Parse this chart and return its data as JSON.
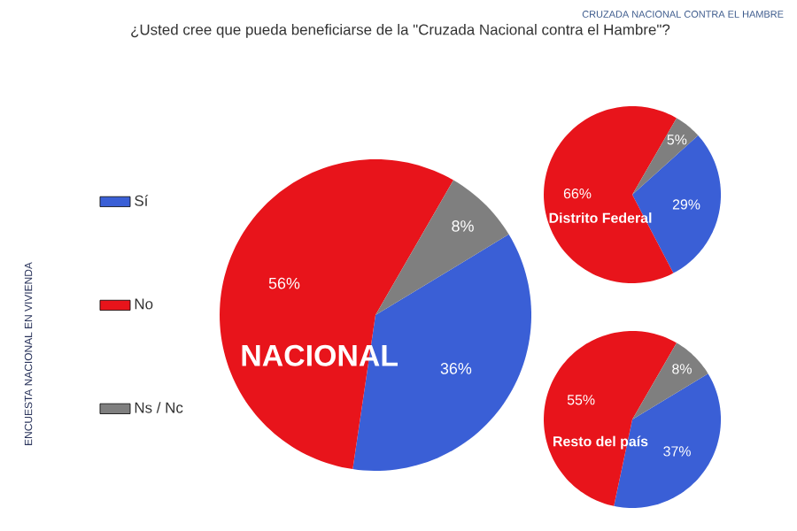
{
  "chart_data": [
    {
      "type": "other",
      "title": "¿Usted cree que pueda beneficiarse de la \"Cruzada Nacional contra el Hambre\"?",
      "annotations": [
        "CRUZADA NACIONAL CONTRA EL HAMBRE",
        "ENCUESTA NACIONAL EN VIVIENDA"
      ]
    },
    {
      "type": "pie",
      "title": "NACIONAL",
      "categories": [
        "Sí",
        "No",
        "Ns / Nc"
      ],
      "values": [
        36,
        56,
        8
      ],
      "colors": [
        "#3a5fd6",
        "#e8141b",
        "#7f7f7f"
      ],
      "value_labels": [
        "36%",
        "56%",
        "8%"
      ],
      "legend": "left"
    },
    {
      "type": "pie",
      "title": "Distrito Federal",
      "categories": [
        null,
        null,
        null
      ],
      "values": [
        29,
        66,
        5
      ],
      "colors": [
        "#3a5fd6",
        "#e8141b",
        "#7f7f7f"
      ],
      "value_labels": [
        "29%",
        "66%",
        "5%"
      ]
    },
    {
      "type": "pie",
      "title": "Resto del país",
      "categories": [
        null,
        null,
        null
      ],
      "values": [
        37,
        55,
        8
      ],
      "colors": [
        "#3a5fd6",
        "#e8141b",
        "#7f7f7f"
      ],
      "value_labels": [
        "37%",
        "55%",
        "8%"
      ]
    }
  ]
}
